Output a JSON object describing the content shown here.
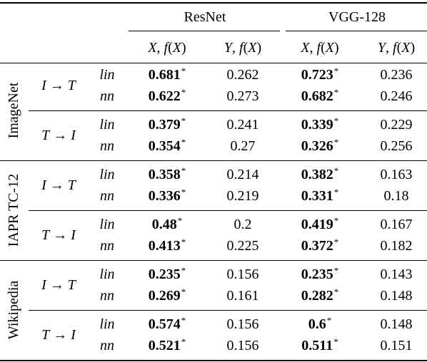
{
  "header": {
    "groups": [
      "ResNet",
      "VGG-128"
    ],
    "columns": [
      "X, f(X)",
      "Y, f(X)",
      "X, f(X)",
      "Y, f(X)"
    ]
  },
  "datasets": [
    {
      "name": "ImageNet",
      "directions": [
        {
          "label": "I → T",
          "rows": [
            {
              "method": "lin",
              "values": [
                "0.681",
                "0.262",
                "0.723",
                "0.236"
              ]
            },
            {
              "method": "nn",
              "values": [
                "0.622",
                "0.273",
                "0.682",
                "0.246"
              ]
            }
          ]
        },
        {
          "label": "T → I",
          "rows": [
            {
              "method": "lin",
              "values": [
                "0.379",
                "0.241",
                "0.339",
                "0.229"
              ]
            },
            {
              "method": "nn",
              "values": [
                "0.354",
                "0.27",
                "0.326",
                "0.256"
              ]
            }
          ]
        }
      ]
    },
    {
      "name": "IAPR TC-12",
      "directions": [
        {
          "label": "I → T",
          "rows": [
            {
              "method": "lin",
              "values": [
                "0.358",
                "0.214",
                "0.382",
                "0.163"
              ]
            },
            {
              "method": "nn",
              "values": [
                "0.336",
                "0.219",
                "0.331",
                "0.18"
              ]
            }
          ]
        },
        {
          "label": "T → I",
          "rows": [
            {
              "method": "lin",
              "values": [
                "0.48",
                "0.2",
                "0.419",
                "0.167"
              ]
            },
            {
              "method": "nn",
              "values": [
                "0.413",
                "0.225",
                "0.372",
                "0.182"
              ]
            }
          ]
        }
      ]
    },
    {
      "name": "Wikipedia",
      "directions": [
        {
          "label": "I → T",
          "rows": [
            {
              "method": "lin",
              "values": [
                "0.235",
                "0.156",
                "0.235",
                "0.143"
              ]
            },
            {
              "method": "nn",
              "values": [
                "0.269",
                "0.161",
                "0.282",
                "0.148"
              ]
            }
          ]
        },
        {
          "label": "T → I",
          "rows": [
            {
              "method": "lin",
              "values": [
                "0.574",
                "0.156",
                "0.6",
                "0.148"
              ]
            },
            {
              "method": "nn",
              "values": [
                "0.521",
                "0.156",
                "0.511",
                "0.151"
              ]
            }
          ]
        }
      ]
    }
  ],
  "significance_mark": "*"
}
